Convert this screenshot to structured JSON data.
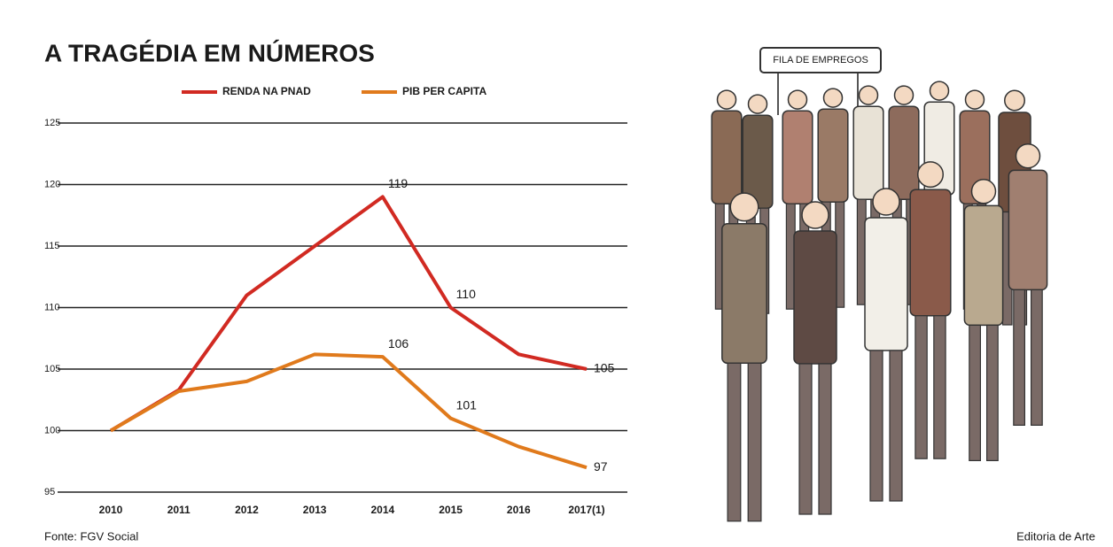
{
  "chart_data": {
    "type": "line",
    "title": "A TRAGÉDIA EM NÚMEROS",
    "categories": [
      "2010",
      "2011",
      "2012",
      "2013",
      "2014",
      "2015",
      "2016",
      "2017(1)"
    ],
    "series": [
      {
        "name": "RENDA NA PNAD",
        "color": "#d12a22",
        "values": [
          100,
          103.3,
          111,
          115,
          119,
          110,
          106.2,
          105
        ],
        "value_labels": [
          null,
          null,
          null,
          null,
          "119",
          "110",
          null,
          "105"
        ]
      },
      {
        "name": "PIB PER CAPITA",
        "color": "#e07a1c",
        "values": [
          100,
          103.2,
          104,
          106.2,
          106,
          101,
          98.7,
          97
        ],
        "value_labels": [
          null,
          null,
          null,
          null,
          "106",
          "101",
          null,
          "97"
        ]
      }
    ],
    "ylim": [
      95,
      125
    ],
    "yticks": [
      95,
      100,
      105,
      110,
      115,
      120,
      125
    ],
    "grid": true
  },
  "source": "Fonte: FGV Social",
  "credit": "Editoria de Arte",
  "illustration_sign": "FILA DE EMPREGOS"
}
